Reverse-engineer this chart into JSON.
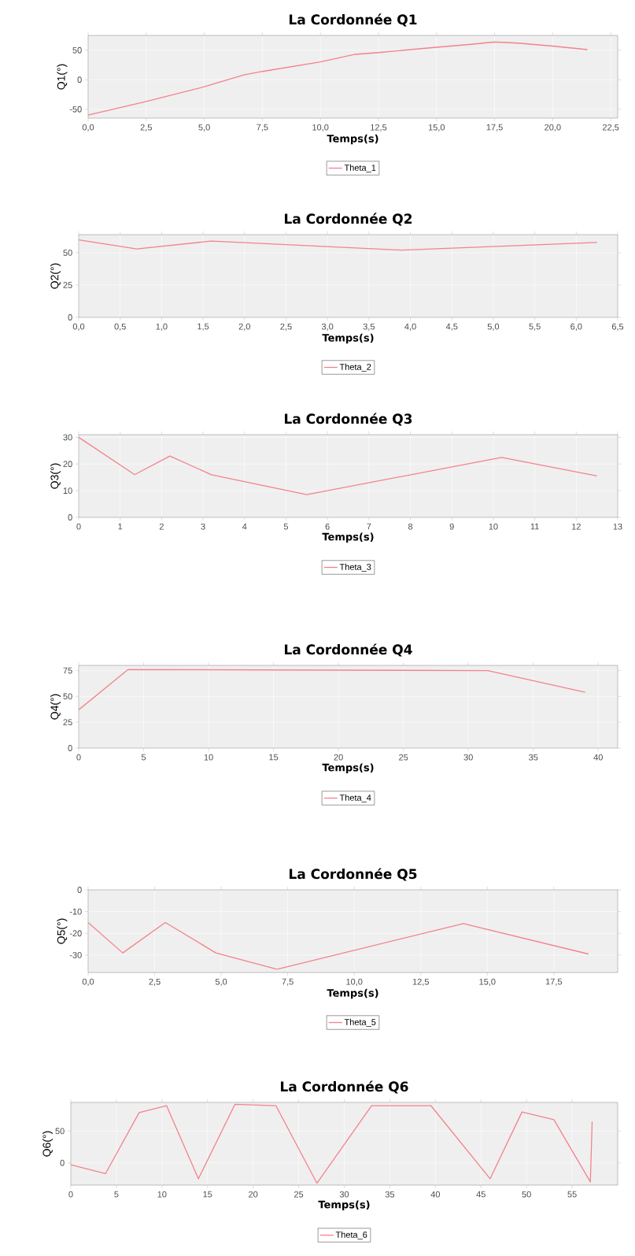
{
  "chart_data": [
    {
      "type": "line",
      "title": "La Cordonnée Q1",
      "xlabel": "Temps(s)",
      "ylabel": "Q1(°)",
      "x": [
        0,
        2.5,
        5,
        6.7,
        7.5,
        10,
        11.5,
        12.5,
        15,
        16.5,
        17.5,
        18.5,
        20,
        21.5
      ],
      "series": [
        {
          "name": "Theta_1",
          "color": "#f4828c",
          "values": [
            -60,
            -37,
            -12,
            8,
            14,
            30,
            43,
            46,
            55,
            60,
            64,
            62,
            57,
            51
          ]
        }
      ],
      "xlim": [
        0,
        22.8
      ],
      "ylim": [
        -65,
        75
      ],
      "xticks": [
        {
          "value": 0,
          "label": "0,0"
        },
        {
          "value": 2.5,
          "label": "2,5"
        },
        {
          "value": 5,
          "label": "5,0"
        },
        {
          "value": 7.5,
          "label": "7,5"
        },
        {
          "value": 10,
          "label": "10,0"
        },
        {
          "value": 12.5,
          "label": "12,5"
        },
        {
          "value": 15,
          "label": "15,0"
        },
        {
          "value": 17.5,
          "label": "17,5"
        },
        {
          "value": 20,
          "label": "20,0"
        },
        {
          "value": 22.5,
          "label": "22,5"
        }
      ],
      "yticks": [
        -50,
        0,
        50
      ],
      "grid": true,
      "legend": "bottom"
    },
    {
      "type": "line",
      "title": "La Cordonnée Q2",
      "xlabel": "Temps(s)",
      "ylabel": "Q2(°)",
      "x": [
        0,
        0.7,
        1.6,
        3.9,
        6.25
      ],
      "series": [
        {
          "name": "Theta_2",
          "color": "#f4828c",
          "values": [
            60,
            53,
            59,
            52,
            58
          ]
        }
      ],
      "xlim": [
        0,
        6.5
      ],
      "ylim": [
        0,
        64
      ],
      "xticks": [
        {
          "value": 0,
          "label": "0,0"
        },
        {
          "value": 0.5,
          "label": "0,5"
        },
        {
          "value": 1,
          "label": "1,0"
        },
        {
          "value": 1.5,
          "label": "1,5"
        },
        {
          "value": 2,
          "label": "2,0"
        },
        {
          "value": 2.5,
          "label": "2,5"
        },
        {
          "value": 3,
          "label": "3,0"
        },
        {
          "value": 3.5,
          "label": "3,5"
        },
        {
          "value": 4,
          "label": "4,0"
        },
        {
          "value": 4.5,
          "label": "4,5"
        },
        {
          "value": 5,
          "label": "5,0"
        },
        {
          "value": 5.5,
          "label": "5,5"
        },
        {
          "value": 6,
          "label": "6,0"
        },
        {
          "value": 6.5,
          "label": "6,5"
        }
      ],
      "yticks": [
        0,
        25,
        50
      ],
      "grid": true,
      "legend": "bottom"
    },
    {
      "type": "line",
      "title": "La Cordonnée Q3",
      "xlabel": "Temps(s)",
      "ylabel": "Q3(°)",
      "x": [
        0,
        1.35,
        2.2,
        3.2,
        5.5,
        10.2,
        12.5
      ],
      "series": [
        {
          "name": "Theta_3",
          "color": "#f4828c",
          "values": [
            30,
            16,
            23,
            16,
            8.5,
            22.5,
            15.5
          ]
        }
      ],
      "xlim": [
        0,
        13
      ],
      "ylim": [
        0,
        31
      ],
      "xticks": [
        0,
        1,
        2,
        3,
        4,
        5,
        6,
        7,
        8,
        9,
        10,
        11,
        12,
        13
      ],
      "yticks": [
        0,
        10,
        20,
        30
      ],
      "grid": true,
      "legend": "bottom"
    },
    {
      "type": "line",
      "title": "La Cordonnée Q4",
      "xlabel": "Temps(s)",
      "ylabel": "Q4(°)",
      "x": [
        0,
        3.8,
        31.5,
        39
      ],
      "series": [
        {
          "name": "Theta_4",
          "color": "#f4828c",
          "values": [
            37,
            76,
            75,
            54
          ]
        }
      ],
      "xlim": [
        0,
        41.5
      ],
      "ylim": [
        0,
        80
      ],
      "xticks": [
        0,
        5,
        10,
        15,
        20,
        25,
        30,
        35,
        40
      ],
      "yticks": [
        0,
        25,
        50,
        75
      ],
      "grid": true,
      "legend": "bottom"
    },
    {
      "type": "line",
      "title": "La Cordonnée Q5",
      "xlabel": "Temps(s)",
      "ylabel": "Q5(°)",
      "x": [
        0,
        1.3,
        2.9,
        4.8,
        7.1,
        14.1,
        18.8
      ],
      "series": [
        {
          "name": "Theta_5",
          "color": "#f4828c",
          "values": [
            -15,
            -29,
            -15,
            -29,
            -36.5,
            -15.5,
            -29.5
          ]
        }
      ],
      "xlim": [
        0,
        19.9
      ],
      "ylim": [
        -38,
        0
      ],
      "xticks": [
        {
          "value": 0,
          "label": "0,0"
        },
        {
          "value": 2.5,
          "label": "2,5"
        },
        {
          "value": 5,
          "label": "5,0"
        },
        {
          "value": 7.5,
          "label": "7,5"
        },
        {
          "value": 10,
          "label": "10,0"
        },
        {
          "value": 12.5,
          "label": "12,5"
        },
        {
          "value": 15,
          "label": "15,0"
        },
        {
          "value": 17.5,
          "label": "17,5"
        }
      ],
      "yticks": [
        -30,
        -20,
        -10,
        0
      ],
      "grid": true,
      "legend": "bottom"
    },
    {
      "type": "line",
      "title": "La Cordonnée Q6",
      "xlabel": "Temps(s)",
      "ylabel": "Q6(°)",
      "x": [
        0,
        3.8,
        7.5,
        10.5,
        14,
        18,
        22.5,
        27,
        33,
        39.5,
        46,
        49.5,
        53,
        57,
        57.2
      ],
      "series": [
        {
          "name": "Theta_6",
          "color": "#f4828c",
          "values": [
            -3,
            -17,
            79,
            90,
            -25,
            92,
            90,
            -32,
            90,
            90,
            -25,
            80,
            68,
            -30,
            65
          ]
        }
      ],
      "xlim": [
        0,
        60
      ],
      "ylim": [
        -35,
        95
      ],
      "xticks": [
        0,
        5,
        10,
        15,
        20,
        25,
        30,
        35,
        40,
        45,
        50,
        55
      ],
      "yticks": [
        0,
        50
      ],
      "grid": true,
      "legend": "bottom"
    }
  ]
}
